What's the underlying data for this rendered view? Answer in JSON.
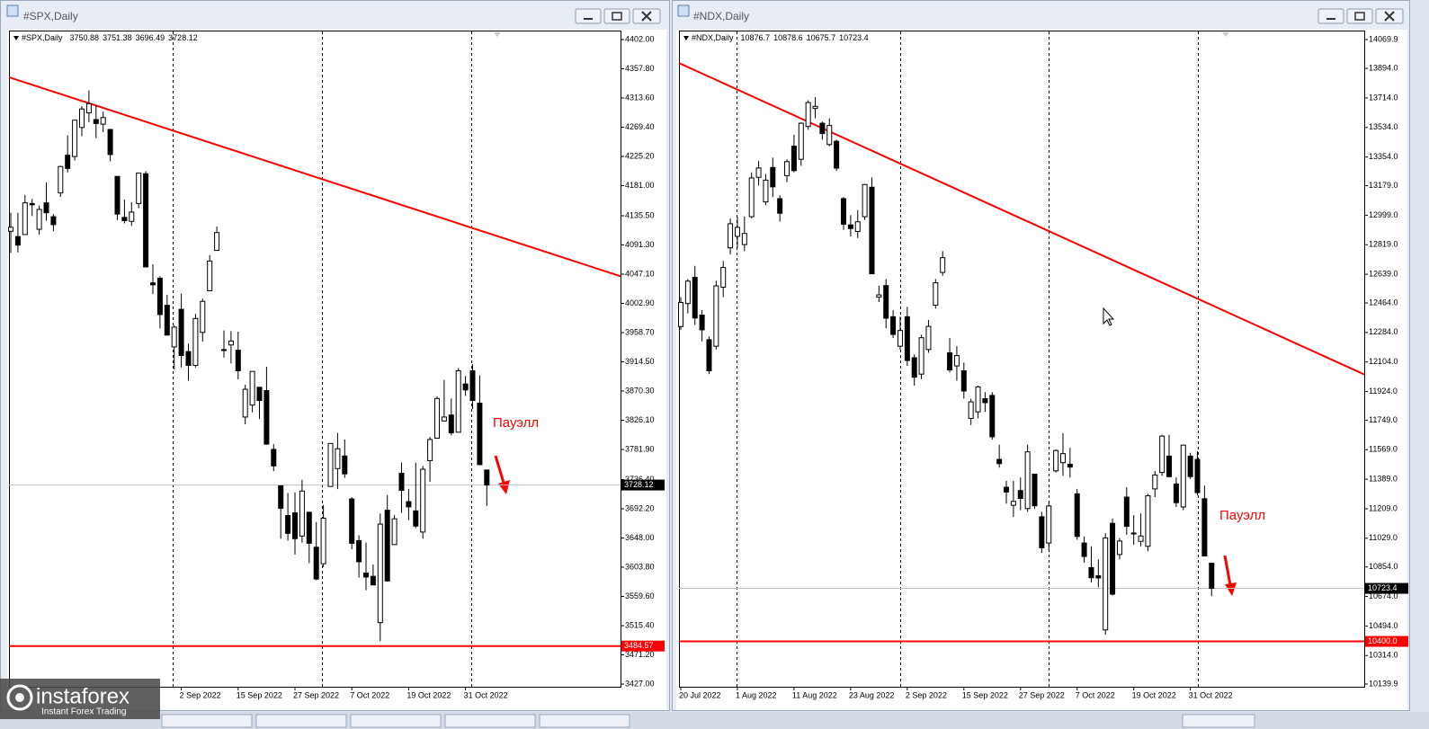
{
  "chart_data": [
    {
      "type": "candlestick",
      "title": "#SPX,Daily",
      "categories": [
        null,
        null,
        null,
        null,
        null,
        null,
        null,
        null,
        null,
        null,
        null,
        null,
        null,
        null,
        null,
        null,
        null,
        null,
        null,
        null,
        null,
        null,
        null,
        null,
        "2 Sep 2022",
        null,
        null,
        null,
        null,
        null,
        null,
        null,
        "15 Sep 2022",
        null,
        null,
        null,
        null,
        null,
        null,
        null,
        "27 Sep 2022",
        null,
        null,
        null,
        null,
        null,
        null,
        null,
        "7 Oct 2022",
        null,
        null,
        null,
        null,
        null,
        null,
        null,
        "19 Oct 2022",
        null,
        null,
        null,
        null,
        null,
        null,
        null,
        "31 Oct 2022",
        null,
        null,
        null
      ],
      "open": [
        4112,
        4104,
        4107,
        4154,
        4115,
        4155,
        4134,
        4170,
        4227,
        4225,
        4269,
        4291,
        4281,
        4274,
        4266,
        4195,
        4133,
        4127,
        4154,
        4199,
        4034,
        4041,
        4000,
        3937,
        3994,
        3930,
        3909,
        3959,
        4022,
        4083,
        3933,
        3940,
        3932,
        3831,
        3849,
        3876,
        3871,
        3782,
        3727,
        3682,
        3686,
        3651,
        3687,
        3634,
        3609,
        3726,
        3753,
        3772,
        3707,
        3644,
        3595,
        3590,
        3520,
        3690,
        3638,
        3746,
        3703,
        3689,
        3657,
        3765,
        3799,
        3825,
        3834,
        3808,
        3881,
        3901,
        3852,
        3750.88
      ],
      "high": [
        4140,
        4140,
        4167,
        4161,
        4151,
        4186,
        4138,
        4211,
        4257,
        4280,
        4301,
        4325,
        4302,
        4293,
        4266,
        4195,
        4160,
        4156,
        4200,
        4203,
        4062,
        4044,
        4016,
        3970,
        4018,
        3942,
        3987,
        4010,
        4076,
        4119,
        3962,
        3961,
        3960,
        3880,
        3900,
        3876,
        3907,
        3790,
        3727,
        3716,
        3717,
        3736,
        3687,
        3672,
        3698,
        3790,
        3807,
        3797,
        3710,
        3652,
        3641,
        3608,
        3685,
        3713,
        3683,
        3762,
        3722,
        3762,
        3757,
        3801,
        3862,
        3887,
        3859,
        3905,
        3893,
        3911,
        3894,
        3751.38
      ],
      "low": [
        4079,
        4080,
        4107,
        4135,
        4107,
        4128,
        4112,
        4164,
        4201,
        4219,
        4256,
        4277,
        4253,
        4262,
        4218,
        4129,
        4124,
        4120,
        4147,
        4058,
        4017,
        3965,
        3954,
        3903,
        3906,
        3886,
        3906,
        3945,
        4022,
        4083,
        3921,
        3912,
        3888,
        3820,
        3838,
        3828,
        3789,
        3749,
        3647,
        3644,
        3623,
        3641,
        3610,
        3584,
        3604,
        3726,
        3722,
        3739,
        3631,
        3588,
        3569,
        3579,
        3492,
        3582,
        3638,
        3686,
        3675,
        3663,
        3647,
        3733,
        3799,
        3824,
        3803,
        3808,
        3863,
        3843,
        3758,
        3696.49
      ],
      "close": [
        4118,
        4091,
        4155,
        4152,
        4145,
        4140,
        4122,
        4210,
        4207,
        4280,
        4297,
        4305,
        4275,
        4284,
        4228,
        4138,
        4128,
        4141,
        4200,
        4058,
        4031,
        3986,
        3955,
        3967,
        3924,
        3909,
        3980,
        4006,
        4067,
        4110,
        3932,
        3946,
        3901,
        3873,
        3900,
        3856,
        3790,
        3757,
        3693,
        3655,
        3647,
        3719,
        3640,
        3586,
        3678,
        3791,
        3783,
        3745,
        3640,
        3612,
        3589,
        3577,
        3669,
        3583,
        3677,
        3720,
        3695,
        3666,
        3752,
        3797,
        3859,
        3831,
        3807,
        3901,
        3872,
        3856,
        3759,
        3728.12
      ],
      "up_color": "#ffffff",
      "down_color": "#000000",
      "ylim": [
        3421.6,
        4415.6
      ],
      "yticks": [
        {
          "value": 4402,
          "label": "4402.00"
        },
        {
          "value": 4357.8,
          "label": "4357.80"
        },
        {
          "value": 4313.6,
          "label": "4313.60"
        },
        {
          "value": 4269.4,
          "label": "4269.40"
        },
        {
          "value": 4225.2,
          "label": "4225.20"
        },
        {
          "value": 4181,
          "label": "4181.00"
        },
        {
          "value": 4135.5,
          "label": "4135.50"
        },
        {
          "value": 4091.3,
          "label": "4091.30"
        },
        {
          "value": 4047.1,
          "label": "4047.10"
        },
        {
          "value": 4002.9,
          "label": "4002.90"
        },
        {
          "value": 3958.7,
          "label": "3958.70"
        },
        {
          "value": 3914.5,
          "label": "3914.50"
        },
        {
          "value": 3870.3,
          "label": "3870.30"
        },
        {
          "value": 3826.1,
          "label": "3826.10"
        },
        {
          "value": 3781.9,
          "label": "3781.90"
        },
        {
          "value": 3736.4,
          "label": "3736.40"
        },
        {
          "value": 3692.2,
          "label": "3692.20"
        },
        {
          "value": 3648,
          "label": "3648.00"
        },
        {
          "value": 3603.8,
          "label": "3603.80"
        },
        {
          "value": 3559.6,
          "label": "3559.60"
        },
        {
          "value": 3515.4,
          "label": "3515.40"
        },
        {
          "value": 3471.2,
          "label": "3471.20"
        },
        {
          "value": 3427,
          "label": "3427.00"
        }
      ],
      "trendline": {
        "values": [
          4345,
          4044
        ],
        "color": "#ff0000"
      },
      "level": {
        "value": 3484.57,
        "color": "#ff0000"
      },
      "annotation": "Пауэлл"
    },
    {
      "type": "candlestick",
      "title": "#NDX,Daily",
      "categories": [
        "20 Jul 2022",
        null,
        null,
        null,
        null,
        null,
        null,
        null,
        "1 Aug 2022",
        null,
        null,
        null,
        null,
        null,
        null,
        null,
        "11 Aug 2022",
        null,
        null,
        null,
        null,
        null,
        null,
        null,
        "23 Aug 2022",
        null,
        null,
        null,
        null,
        null,
        null,
        null,
        "2 Sep 2022",
        null,
        null,
        null,
        null,
        null,
        null,
        null,
        "15 Sep 2022",
        null,
        null,
        null,
        null,
        null,
        null,
        null,
        "27 Sep 2022",
        null,
        null,
        null,
        null,
        null,
        null,
        null,
        "7 Oct 2022",
        null,
        null,
        null,
        null,
        null,
        null,
        null,
        "19 Oct 2022",
        null,
        null,
        null,
        null,
        null,
        null,
        null,
        "31 Oct 2022",
        null,
        null,
        null
      ],
      "open": [
        12320,
        12460,
        12620,
        12390,
        12240,
        12200,
        12560,
        12800,
        12870,
        12820,
        12990,
        13230,
        13080,
        13290,
        13100,
        13240,
        13420,
        13340,
        13540,
        13650,
        13560,
        13430,
        13450,
        13100,
        12940,
        12900,
        12990,
        13170,
        12500,
        12570,
        12380,
        12200,
        12380,
        12130,
        12030,
        12180,
        12450,
        12650,
        12160,
        12080,
        12050,
        11760,
        11800,
        11880,
        11900,
        11510,
        11340,
        11230,
        11320,
        11210,
        11420,
        11160,
        11000,
        11440,
        11490,
        11480,
        11300,
        11000,
        10850,
        10800,
        10470,
        11120,
        10930,
        11280,
        11060,
        11010,
        10980,
        11330,
        11430,
        11530,
        11360,
        11220,
        11530,
        11510,
        11270,
        10876.7
      ],
      "high": [
        12500,
        12610,
        12690,
        12420,
        12260,
        12600,
        12720,
        12980,
        12990,
        12990,
        13260,
        13330,
        13250,
        13350,
        13120,
        13340,
        13490,
        13565,
        13700,
        13720,
        13570,
        13590,
        13460,
        13110,
        13000,
        13030,
        13190,
        13230,
        12570,
        12610,
        12420,
        12380,
        12440,
        12150,
        12270,
        12360,
        12610,
        12780,
        12250,
        12200,
        12100,
        11880,
        11960,
        11920,
        11920,
        11600,
        11380,
        11380,
        11400,
        11600,
        11420,
        11190,
        11250,
        11570,
        11670,
        11580,
        11330,
        11040,
        10980,
        10900,
        11060,
        11150,
        11030,
        11340,
        11170,
        11180,
        11300,
        11440,
        11660,
        11660,
        11400,
        11600,
        11550,
        11560,
        11350,
        10878.6
      ],
      "low": [
        12300,
        12400,
        12330,
        12230,
        12030,
        12180,
        12500,
        12760,
        12800,
        12780,
        12980,
        13180,
        13060,
        13110,
        12960,
        13200,
        13260,
        13300,
        13520,
        13590,
        13460,
        13420,
        13270,
        12910,
        12870,
        12860,
        12970,
        12640,
        12470,
        12310,
        12250,
        12180,
        12080,
        11960,
        12000,
        12160,
        12430,
        12630,
        12040,
        11990,
        11880,
        11720,
        11760,
        11800,
        11630,
        11460,
        11240,
        11160,
        11200,
        11190,
        11210,
        10940,
        10960,
        11430,
        11410,
        11400,
        11020,
        10880,
        10760,
        10730,
        10440,
        10680,
        10900,
        11050,
        10990,
        10980,
        10950,
        11280,
        11410,
        11400,
        11220,
        11200,
        11390,
        11290,
        10920,
        10675.7
      ],
      "close": [
        12467,
        12597,
        12372,
        12300,
        12050,
        12568,
        12680,
        12947,
        12925,
        12888,
        13226,
        13287,
        13213,
        13172,
        13011,
        13326,
        13271,
        13560,
        13686,
        13663,
        13497,
        13546,
        13286,
        12944,
        12918,
        12959,
        13186,
        12642,
        12513,
        12371,
        12272,
        12296,
        12113,
        12011,
        12252,
        12321,
        12587,
        12740,
        12055,
        12143,
        11927,
        11861,
        11952,
        11856,
        11648,
        11484,
        11311,
        11254,
        11272,
        11556,
        11227,
        10971,
        11226,
        11564,
        11545,
        11463,
        11040,
        10918,
        10788,
        10787,
        11031,
        10688,
        11012,
        11102,
        11061,
        11043,
        11288,
        11415,
        11652,
        11405,
        11246,
        11597,
        11405,
        11307,
        10921,
        10723.4
      ],
      "up_color": "#ffffff",
      "down_color": "#000000",
      "ylim": [
        10118,
        14125
      ],
      "yticks": [
        {
          "value": 14069.9,
          "label": "14069.9"
        },
        {
          "value": 13894,
          "label": "13894.0"
        },
        {
          "value": 13714,
          "label": "13714.0"
        },
        {
          "value": 13534,
          "label": "13534.0"
        },
        {
          "value": 13354,
          "label": "13354.0"
        },
        {
          "value": 13179,
          "label": "13179.0"
        },
        {
          "value": 12999,
          "label": "12999.0"
        },
        {
          "value": 12819,
          "label": "12819.0"
        },
        {
          "value": 12639,
          "label": "12639.0"
        },
        {
          "value": 12464,
          "label": "12464.0"
        },
        {
          "value": 12284,
          "label": "12284.0"
        },
        {
          "value": 12104,
          "label": "12104.0"
        },
        {
          "value": 11924,
          "label": "11924.0"
        },
        {
          "value": 11749,
          "label": "11749.0"
        },
        {
          "value": 11569,
          "label": "11569.0"
        },
        {
          "value": 11389,
          "label": "11389.0"
        },
        {
          "value": 11209,
          "label": "11209.0"
        },
        {
          "value": 11029,
          "label": "11029.0"
        },
        {
          "value": 10854,
          "label": "10854.0"
        },
        {
          "value": 10674,
          "label": "10674.0"
        },
        {
          "value": 10494,
          "label": "10494.0"
        },
        {
          "value": 10314,
          "label": "10314.0"
        },
        {
          "value": 10139.9,
          "label": "10139.9"
        }
      ],
      "trendline": {
        "values": [
          13927,
          12028
        ],
        "color": "#ff0000"
      },
      "level": {
        "value": 10400,
        "label": "10400.0",
        "color": "#ff0000"
      },
      "annotation": "Пауэлл"
    }
  ],
  "watermark": {
    "brand": "instaforex",
    "tagline": "Instant Forex Trading"
  }
}
